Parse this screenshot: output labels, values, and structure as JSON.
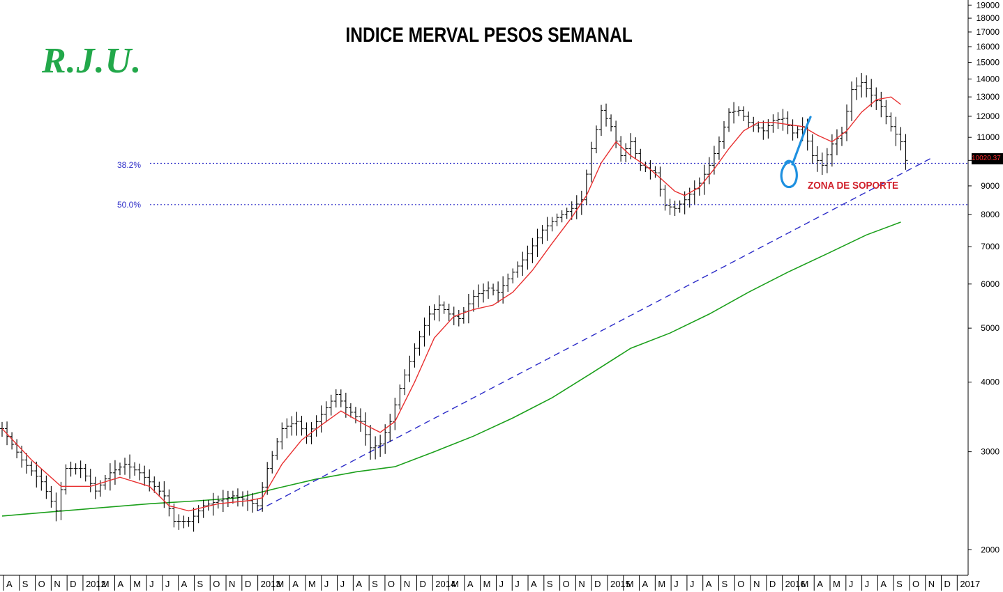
{
  "chart_data": {
    "type": "ohlc",
    "title": "INDICE MERVAL PESOS SEMANAL",
    "watermark": "R.J.U.",
    "y_scale": "log",
    "ylim": [
      1900,
      19000
    ],
    "y_ticks": [
      2000,
      3000,
      4000,
      5000,
      6000,
      7000,
      8000,
      9000,
      10000,
      11000,
      12000,
      13000,
      14000,
      15000,
      16000,
      17000,
      18000,
      19000
    ],
    "x_ticks": [
      "A",
      "S",
      "O",
      "N",
      "D",
      "2012",
      "M",
      "A",
      "M",
      "J",
      "J",
      "A",
      "S",
      "O",
      "N",
      "D",
      "2013",
      "M",
      "A",
      "M",
      "J",
      "J",
      "A",
      "S",
      "O",
      "N",
      "D",
      "2014",
      "M",
      "A",
      "M",
      "J",
      "J",
      "A",
      "S",
      "O",
      "N",
      "D",
      "2015",
      "M",
      "A",
      "M",
      "J",
      "J",
      "A",
      "S",
      "O",
      "N",
      "D",
      "2016",
      "M",
      "A",
      "M",
      "J",
      "J",
      "A",
      "S",
      "O",
      "N",
      "D",
      "2017"
    ],
    "price_path": [
      [
        0,
        3300
      ],
      [
        4,
        2900
      ],
      [
        8,
        2650
      ],
      [
        11,
        2350
      ],
      [
        13,
        2800
      ],
      [
        16,
        2800
      ],
      [
        19,
        2550
      ],
      [
        22,
        2750
      ],
      [
        25,
        2850
      ],
      [
        28,
        2750
      ],
      [
        31,
        2600
      ],
      [
        33,
        2500
      ],
      [
        35,
        2250
      ],
      [
        38,
        2250
      ],
      [
        41,
        2400
      ],
      [
        44,
        2450
      ],
      [
        47,
        2500
      ],
      [
        50,
        2450
      ],
      [
        52,
        2400
      ],
      [
        54,
        2800
      ],
      [
        57,
        3300
      ],
      [
        60,
        3400
      ],
      [
        62,
        3200
      ],
      [
        65,
        3500
      ],
      [
        68,
        3800
      ],
      [
        70,
        3600
      ],
      [
        73,
        3400
      ],
      [
        75,
        3050
      ],
      [
        77,
        3100
      ],
      [
        79,
        3400
      ],
      [
        81,
        3900
      ],
      [
        84,
        4600
      ],
      [
        87,
        5300
      ],
      [
        89,
        5500
      ],
      [
        91,
        5300
      ],
      [
        93,
        5200
      ],
      [
        96,
        5700
      ],
      [
        99,
        5900
      ],
      [
        101,
        5800
      ],
      [
        104,
        6300
      ],
      [
        107,
        6800
      ],
      [
        110,
        7500
      ],
      [
        113,
        7900
      ],
      [
        116,
        8200
      ],
      [
        118,
        8500
      ],
      [
        120,
        10500
      ],
      [
        122,
        12300
      ],
      [
        124,
        11500
      ],
      [
        126,
        10200
      ],
      [
        128,
        10800
      ],
      [
        130,
        9800
      ],
      [
        133,
        9500
      ],
      [
        135,
        8300
      ],
      [
        137,
        8200
      ],
      [
        139,
        8500
      ],
      [
        142,
        9100
      ],
      [
        144,
        9800
      ],
      [
        146,
        10800
      ],
      [
        148,
        12200
      ],
      [
        150,
        12300
      ],
      [
        152,
        11700
      ],
      [
        155,
        11300
      ],
      [
        157,
        11800
      ],
      [
        159,
        11900
      ],
      [
        161,
        11200
      ],
      [
        163,
        11500
      ],
      [
        165,
        10200
      ],
      [
        167,
        9800
      ],
      [
        169,
        10700
      ],
      [
        171,
        11200
      ],
      [
        173,
        13400
      ],
      [
        175,
        13800
      ],
      [
        177,
        13100
      ],
      [
        179,
        12500
      ],
      [
        181,
        11500
      ],
      [
        183,
        10800
      ],
      [
        184,
        10000
      ]
    ],
    "series": [
      {
        "name": "",
        "color": "#e83030",
        "points": [
          [
            0,
            3300
          ],
          [
            6,
            2900
          ],
          [
            12,
            2600
          ],
          [
            18,
            2600
          ],
          [
            24,
            2700
          ],
          [
            30,
            2600
          ],
          [
            34,
            2400
          ],
          [
            38,
            2350
          ],
          [
            44,
            2420
          ],
          [
            50,
            2450
          ],
          [
            53,
            2480
          ],
          [
            57,
            2850
          ],
          [
            61,
            3150
          ],
          [
            65,
            3350
          ],
          [
            69,
            3550
          ],
          [
            74,
            3350
          ],
          [
            77,
            3250
          ],
          [
            80,
            3400
          ],
          [
            84,
            4000
          ],
          [
            88,
            4800
          ],
          [
            92,
            5250
          ],
          [
            96,
            5400
          ],
          [
            100,
            5500
          ],
          [
            104,
            5800
          ],
          [
            108,
            6350
          ],
          [
            112,
            7100
          ],
          [
            116,
            7900
          ],
          [
            119,
            8650
          ],
          [
            122,
            9900
          ],
          [
            125,
            10800
          ],
          [
            128,
            10200
          ],
          [
            131,
            9800
          ],
          [
            134,
            9300
          ],
          [
            137,
            8800
          ],
          [
            139,
            8650
          ],
          [
            142,
            8950
          ],
          [
            145,
            9650
          ],
          [
            148,
            10500
          ],
          [
            151,
            11300
          ],
          [
            154,
            11700
          ],
          [
            157,
            11700
          ],
          [
            160,
            11600
          ],
          [
            163,
            11500
          ],
          [
            166,
            11100
          ],
          [
            169,
            10800
          ],
          [
            172,
            11300
          ],
          [
            175,
            12200
          ],
          [
            178,
            12850
          ],
          [
            181,
            13000
          ],
          [
            183,
            12600
          ]
        ]
      },
      {
        "name": "",
        "color": "#1ca01c",
        "points": [
          [
            0,
            2300
          ],
          [
            10,
            2340
          ],
          [
            20,
            2380
          ],
          [
            30,
            2420
          ],
          [
            40,
            2450
          ],
          [
            48,
            2480
          ],
          [
            56,
            2580
          ],
          [
            64,
            2680
          ],
          [
            72,
            2760
          ],
          [
            80,
            2820
          ],
          [
            88,
            3000
          ],
          [
            96,
            3200
          ],
          [
            104,
            3450
          ],
          [
            112,
            3750
          ],
          [
            120,
            4150
          ],
          [
            128,
            4600
          ],
          [
            136,
            4900
          ],
          [
            144,
            5300
          ],
          [
            152,
            5800
          ],
          [
            160,
            6300
          ],
          [
            168,
            6800
          ],
          [
            176,
            7350
          ],
          [
            183,
            7750
          ]
        ]
      }
    ],
    "trendline": {
      "x": [
        52,
        185
      ],
      "y": [
        2350,
        10100
      ],
      "color": "#2c2cc8",
      "style": "dashed"
    },
    "fibonacci": [
      {
        "label": "38.2%",
        "value": 9880
      },
      {
        "label": "50.0%",
        "value": 8330
      }
    ],
    "last_value": "10020.37",
    "annotation": "ZONA DE SOPORTE"
  }
}
